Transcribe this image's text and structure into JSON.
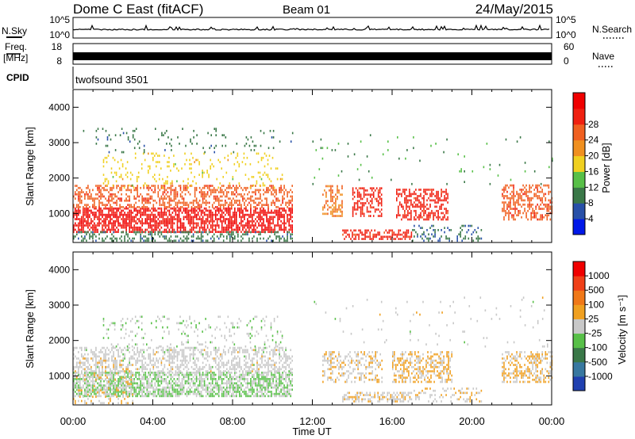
{
  "header": {
    "station": "Dome C East (fitACF)",
    "beam": "Beam 01",
    "date": "24/May/2015"
  },
  "top_panels": {
    "nsky_label": "N.Sky",
    "nsky_ticks": [
      "10^5",
      "10^0"
    ],
    "nsearch_label": "N.Search",
    "nsearch_ticks": [
      "10^5",
      "10^0"
    ],
    "freq_label_1": "Freq.",
    "freq_label_2": "[MHz]",
    "freq_ticks": [
      "18",
      "8"
    ],
    "nave_label": "Nave",
    "nave_ticks": [
      "60",
      "0"
    ],
    "cpid_label": "CPID",
    "cpid_text": "twofsound 3501"
  },
  "colors": {
    "power_scale": [
      "#0018e8",
      "#2850a8",
      "#3a7848",
      "#58c048",
      "#f0d020",
      "#f09020",
      "#f06020",
      "#f02010",
      "#f00000"
    ],
    "velocity_scale": [
      "#2040b0",
      "#3878a0",
      "#3a7848",
      "#58c048",
      "#c8c8c8",
      "#f0a020",
      "#f07818",
      "#f04018",
      "#f00000"
    ]
  },
  "chart_data": [
    {
      "type": "heatmap",
      "name": "power",
      "xlabel": "",
      "ylabel": "Slant Range [km]",
      "x_ticks": [
        "00:00",
        "04:00",
        "08:00",
        "12:00",
        "16:00",
        "20:00",
        "00:00"
      ],
      "x_range_hours": [
        0,
        24
      ],
      "y_ticks": [
        1000,
        2000,
        3000,
        4000
      ],
      "y_range_km": [
        180,
        4500
      ],
      "colorbar_label": "Power [dB]",
      "colorbar_ticks": [
        4,
        8,
        12,
        16,
        20,
        24,
        28
      ],
      "colorbar_range": [
        0,
        30
      ],
      "blobs": [
        {
          "t0": 0.0,
          "t1": 11.0,
          "r0": 450,
          "r1": 1150,
          "v": 27,
          "d": 0.7
        },
        {
          "t0": 0.0,
          "t1": 11.0,
          "r0": 1150,
          "r1": 1800,
          "v": 22,
          "d": 0.45
        },
        {
          "t0": 0.0,
          "t1": 11.0,
          "r0": 200,
          "r1": 450,
          "v": 8,
          "d": 0.35
        },
        {
          "t0": 1.5,
          "t1": 10.5,
          "r0": 1700,
          "r1": 2700,
          "v": 15,
          "d": 0.12
        },
        {
          "t0": 0.5,
          "t1": 11.0,
          "r0": 2700,
          "r1": 3400,
          "v": 8,
          "d": 0.05
        },
        {
          "t0": 12.5,
          "t1": 13.5,
          "r0": 900,
          "r1": 1800,
          "v": 20,
          "d": 0.4
        },
        {
          "t0": 14.0,
          "t1": 15.5,
          "r0": 900,
          "r1": 1700,
          "v": 25,
          "d": 0.5
        },
        {
          "t0": 16.2,
          "t1": 18.8,
          "r0": 800,
          "r1": 1700,
          "v": 25,
          "d": 0.5
        },
        {
          "t0": 13.5,
          "t1": 17.0,
          "r0": 250,
          "r1": 550,
          "v": 25,
          "d": 0.55
        },
        {
          "t0": 17.0,
          "t1": 20.5,
          "r0": 200,
          "r1": 650,
          "v": 7,
          "d": 0.25
        },
        {
          "t0": 21.5,
          "t1": 24.0,
          "r0": 800,
          "r1": 1800,
          "v": 22,
          "d": 0.5
        },
        {
          "t0": 12.0,
          "t1": 24.0,
          "r0": 1800,
          "r1": 3200,
          "v": 10,
          "d": 0.02
        }
      ]
    },
    {
      "type": "heatmap",
      "name": "velocity",
      "xlabel": "Time UT",
      "ylabel": "Slant Range [km]",
      "x_ticks": [
        "00:00",
        "04:00",
        "08:00",
        "12:00",
        "16:00",
        "20:00",
        "00:00"
      ],
      "x_range_hours": [
        0,
        24
      ],
      "y_ticks": [
        1000,
        2000,
        3000,
        4000
      ],
      "y_range_km": [
        180,
        4500
      ],
      "colorbar_label": "Velocity [m s⁻¹]",
      "colorbar_ticks": [
        "1000",
        "500",
        "100",
        "25",
        "-25",
        "-100",
        "-500",
        "-1000"
      ],
      "colorbar_range": [
        -1500,
        1500
      ],
      "blobs": [
        {
          "t0": 0.0,
          "t1": 11.0,
          "r0": 400,
          "r1": 1100,
          "v": -150,
          "d": 0.7
        },
        {
          "t0": 0.0,
          "t1": 11.0,
          "r0": 1100,
          "r1": 1800,
          "v": 0,
          "d": 0.45
        },
        {
          "t0": 1.5,
          "t1": 10.5,
          "r0": 1800,
          "r1": 2700,
          "v": -80,
          "d": 0.12
        },
        {
          "t0": 0.0,
          "t1": 3.0,
          "r0": 200,
          "r1": 1500,
          "v": 150,
          "d": 0.2
        },
        {
          "t0": 12.5,
          "t1": 15.5,
          "r0": 800,
          "r1": 1700,
          "v": 150,
          "d": 0.4
        },
        {
          "t0": 16.0,
          "t1": 19.0,
          "r0": 800,
          "r1": 1700,
          "v": 200,
          "d": 0.45
        },
        {
          "t0": 13.5,
          "t1": 17.0,
          "r0": 250,
          "r1": 550,
          "v": 120,
          "d": 0.5
        },
        {
          "t0": 17.0,
          "t1": 20.5,
          "r0": 250,
          "r1": 650,
          "v": 90,
          "d": 0.2
        },
        {
          "t0": 21.5,
          "t1": 24.0,
          "r0": 800,
          "r1": 1700,
          "v": 200,
          "d": 0.45
        },
        {
          "t0": 12.0,
          "t1": 24.0,
          "r0": 1800,
          "r1": 3200,
          "v": 0,
          "d": 0.02
        }
      ]
    }
  ]
}
